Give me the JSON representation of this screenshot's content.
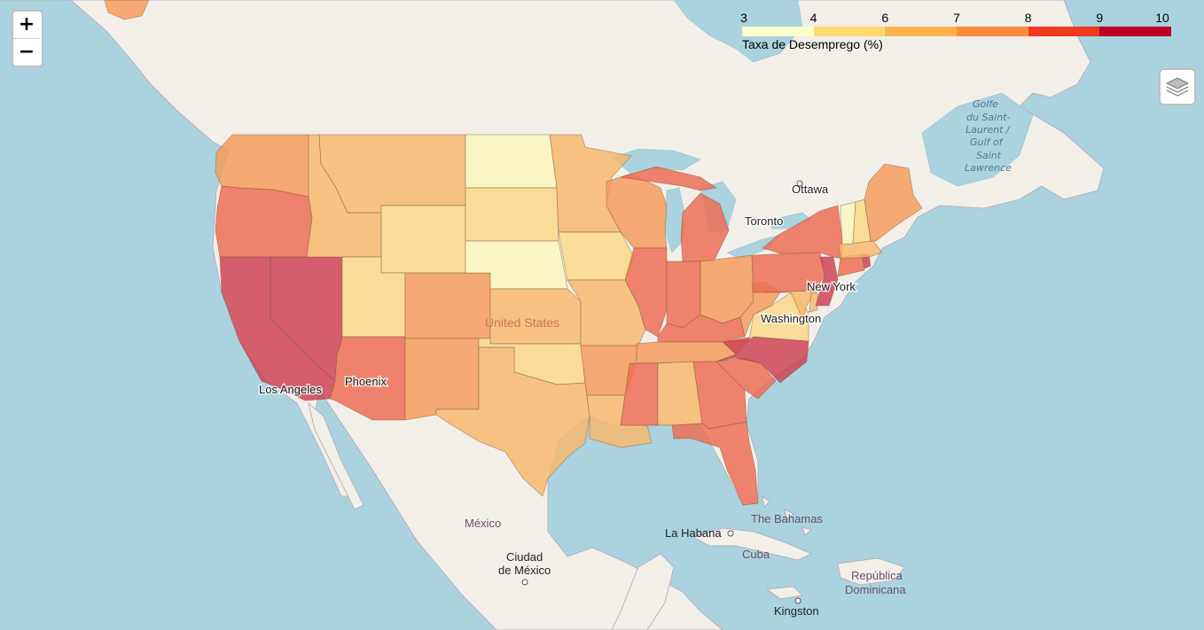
{
  "map": {
    "labels": {
      "ottawa": "Ottawa",
      "toronto": "Toronto",
      "new_york": "New York",
      "washington": "Washington",
      "los_angeles": "Los Angeles",
      "phoenix": "Phoenix",
      "united_states": "United States",
      "mexico": "México",
      "mexico_city_line1": "Ciudad",
      "mexico_city_line2": "de México",
      "la_habana": "La Habana",
      "bahamas": "The Bahamas",
      "cuba": "Cuba",
      "dominicana_line1": "República",
      "dominicana_line2": "Dominicana",
      "kingston": "Kingston",
      "gulf_line1": "Golfe",
      "gulf_line2": "du Saint-",
      "gulf_line3": "Laurent /",
      "gulf_line4": "Gulf of",
      "gulf_line5": "Saint",
      "gulf_line6": "Lawrence"
    }
  },
  "controls": {
    "zoom_in": "+",
    "zoom_out": "−",
    "layers_icon": "layers-icon"
  },
  "legend": {
    "caption": "Taxa de Desemprego (%)",
    "ticks": [
      "3",
      "4",
      "6",
      "7",
      "8",
      "9",
      "10"
    ],
    "bins": [
      {
        "from": 3,
        "to": 4,
        "color": "#ffffcc"
      },
      {
        "from": 4,
        "to": 6,
        "color": "#fed976"
      },
      {
        "from": 6,
        "to": 7,
        "color": "#feb24c"
      },
      {
        "from": 7,
        "to": 8,
        "color": "#fd8d3c"
      },
      {
        "from": 8,
        "to": 9,
        "color": "#f03b20"
      },
      {
        "from": 9,
        "to": 10,
        "color": "#bd0026"
      }
    ]
  },
  "states": {
    "WA": {
      "color": "#f69a58"
    },
    "OR": {
      "color": "#ee6a50"
    },
    "CA": {
      "color": "#cd3e50"
    },
    "NV": {
      "color": "#cd3e50"
    },
    "ID": {
      "color": "#f8b76b"
    },
    "MT": {
      "color": "#f8b76b"
    },
    "WY": {
      "color": "#fbd888"
    },
    "UT": {
      "color": "#fbd888"
    },
    "AZ": {
      "color": "#ee6a50"
    },
    "CO": {
      "color": "#f69a58"
    },
    "NM": {
      "color": "#f69a58"
    },
    "ND": {
      "color": "#fbf6bd"
    },
    "SD": {
      "color": "#fbd888"
    },
    "NE": {
      "color": "#fbf6bd"
    },
    "KS": {
      "color": "#f8b76b"
    },
    "OK": {
      "color": "#fbd888"
    },
    "TX": {
      "color": "#f8b76b"
    },
    "MN": {
      "color": "#f8b76b"
    },
    "IA": {
      "color": "#fbd888"
    },
    "MO": {
      "color": "#f8b76b"
    },
    "AR": {
      "color": "#f69a58"
    },
    "LA": {
      "color": "#f8b76b"
    },
    "WI": {
      "color": "#f69a58"
    },
    "IL": {
      "color": "#ee6a50"
    },
    "MI": {
      "color": "#ee6a50"
    },
    "IN": {
      "color": "#ee6a50"
    },
    "OH": {
      "color": "#f69a58"
    },
    "KY": {
      "color": "#ee6a50"
    },
    "TN": {
      "color": "#f69a58"
    },
    "MS": {
      "color": "#ee6a50"
    },
    "AL": {
      "color": "#f8b76b"
    },
    "GA": {
      "color": "#ee6a50"
    },
    "FL": {
      "color": "#ee6a50"
    },
    "SC": {
      "color": "#ee6a50"
    },
    "NC": {
      "color": "#cd3e50"
    },
    "VA": {
      "color": "#fbd888"
    },
    "WV": {
      "color": "#f69a58"
    },
    "PA": {
      "color": "#ee6a50"
    },
    "NY": {
      "color": "#ee6a50"
    },
    "NJ": {
      "color": "#cd3e50"
    },
    "MD": {
      "color": "#f8b76b"
    },
    "DE": {
      "color": "#f8b76b"
    },
    "CT": {
      "color": "#ee6a50"
    },
    "RI": {
      "color": "#cd3e50"
    },
    "MA": {
      "color": "#f8b76b"
    },
    "VT": {
      "color": "#fbf6bd"
    },
    "NH": {
      "color": "#fbd888"
    },
    "ME": {
      "color": "#f69a58"
    },
    "AK": {
      "color": "#f69a58"
    }
  }
}
